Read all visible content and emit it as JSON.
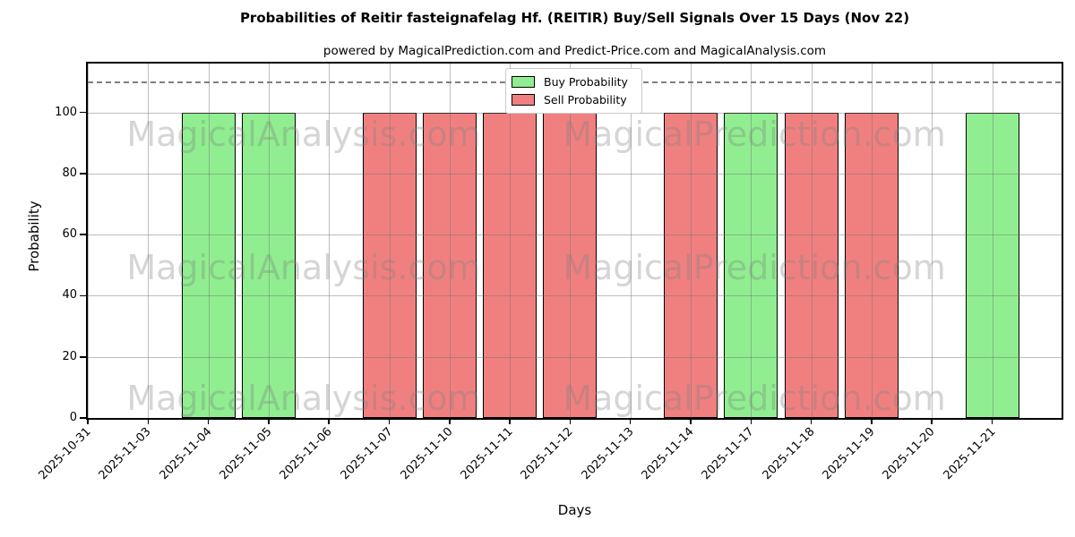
{
  "chart_data": {
    "type": "bar",
    "title": "Probabilities of Reitir fasteignafelag Hf. (REITIR) Buy/Sell Signals Over 15 Days (Nov 22)",
    "subtitle": "powered by MagicalPrediction.com and Predict-Price.com and MagicalAnalysis.com",
    "xlabel": "Days",
    "ylabel": "Probability",
    "ylim": [
      0,
      116
    ],
    "yticks": [
      0,
      20,
      40,
      60,
      80,
      100
    ],
    "grid": true,
    "bar_edge_color": "#000000",
    "threshold_line": {
      "y": 110,
      "style": "dashed",
      "color": "#7f7f7f"
    },
    "legend": {
      "position": "upper center",
      "entries": [
        {
          "label": "Buy Probability",
          "color": "#90ee90"
        },
        {
          "label": "Sell Probability",
          "color": "#f08080"
        }
      ]
    },
    "categories": [
      "2025-10-31",
      "2025-11-03",
      "2025-11-04",
      "2025-11-05",
      "2025-11-06",
      "2025-11-07",
      "2025-11-10",
      "2025-11-11",
      "2025-11-12",
      "2025-11-13",
      "2025-11-14",
      "2025-11-17",
      "2025-11-18",
      "2025-11-19",
      "2025-11-20",
      "2025-11-21"
    ],
    "series": [
      {
        "name": "Buy Probability",
        "color": "#90ee90",
        "values": [
          0,
          0,
          100,
          100,
          0,
          0,
          0,
          0,
          0,
          0,
          0,
          100,
          0,
          0,
          0,
          100
        ]
      },
      {
        "name": "Sell Probability",
        "color": "#f08080",
        "values": [
          0,
          0,
          0,
          0,
          0,
          100,
          100,
          100,
          100,
          0,
          100,
          0,
          100,
          100,
          0,
          0
        ]
      }
    ]
  },
  "watermarks": {
    "texts": [
      "MagicalAnalysis.com",
      "MagicalPrediction.com"
    ]
  }
}
